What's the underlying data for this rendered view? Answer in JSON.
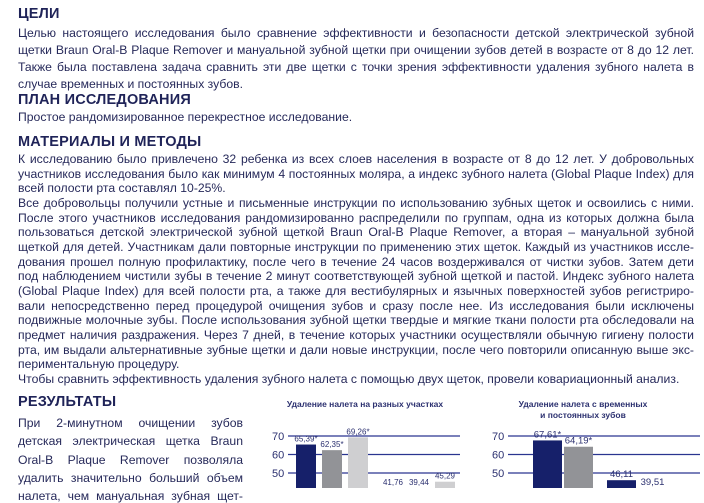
{
  "goals": {
    "heading": "ЦЕЛИ",
    "lines": [
      "Целью настоящего исследования было сравнение эффективности и безопасности детской электрической зубной",
      "щетки Braun Oral-B Plaque Remover и мануальной зубной щетки при очищении зубов детей в возрасте от 8 до 12 лет.",
      "Также была поставлена задача сравнить эти две щетки с точки зрения эффективности удаления зубного налета в",
      "случае временных и постоянных зубов."
    ]
  },
  "plan": {
    "heading": "ПЛАН ИССЛЕДОВАНИЯ",
    "lines": [
      "Простое рандомизированное перекрестное исследование."
    ]
  },
  "methods": {
    "heading": "МАТЕРИАЛЫ И МЕТОДЫ",
    "lines": [
      "К исследованию было привлечено 32 ребенка из всех слоев населения в возрасте от 8 до 12 лет. У добровольных",
      "участников исследования было как минимум 4 постоянных моляра, а индекс зубного налета (Global Plaque Index) для",
      "всей полости рта составлял 10-25%.",
      "Все добровольцы получили устные и письменные инструкции по использованию зубных щеток и освоились с ними.",
      "После этого участников исследования рандомизированно распределили по группам, одна из которых должна была",
      "пользоваться детской электрической зубной щеткой Braun Oral-B Plaque Remover, а вторая – мануальной зубной",
      "щеткой для детей. Участникам дали повторные инструкции по применению этих щеток. Каждый из участников иссле-",
      "дования прошел полную профилактику, после чего в течение 24 часов воздерживался от чистки зубов. Затем дети",
      "под наблюдением чистили зубы в течение 2 минут соответствующей зубной щеткой и пастой. Индекс зубного налета",
      "(Global Plaque Index) для всей полости рта, а также для вестибулярных и язычных поверхностей зубов регистриро-",
      "вали непосредственно перед процедурой очищения зубов и сразу после нее. Из исследования были исключены",
      "подвижные молочные зубы. После использования зубной щетки твердые и мягкие ткани полости рта обследовали на",
      "предмет наличия раздражения. Через 7 дней, в течение которых участники осуществляли обычную гигиену полости",
      "рта, им выдали альтернативные зубные щетки и дали новые инструкции, после чего повторили описанную выше экс-",
      "периментальную процедуру.",
      "Чтобы сравнить эффективность удаления зубного налета с помощью двух щеток, провели ковариационный анализ."
    ]
  },
  "results": {
    "heading": "РЕЗУЛЬТАТЫ",
    "lines": [
      "При 2-минутном очищении зубов",
      "детская электрическая щетка Braun",
      "Oral-B Plaque Remover позволяла",
      "удалить значительно больший объем",
      "налета, чем мануальная зубная щет-"
    ]
  },
  "colors": {
    "navy": "#16206a",
    "gray": "#929397",
    "light": "#cfcfd1",
    "grid": "#2a3590"
  },
  "chart_data": [
    {
      "type": "bar",
      "title": "Удаление налета на разных участках",
      "yticks": [
        50,
        60,
        70
      ],
      "ylim": [
        0,
        70
      ],
      "groups": [
        {
          "values": [
            65.39,
            62.35,
            69.26
          ],
          "labels": [
            "65,39*",
            "62,35*",
            "69,26*"
          ]
        },
        {
          "values": [
            41.76,
            39.44,
            45.29
          ],
          "labels": [
            "41,76",
            "39,44",
            "45,29"
          ]
        }
      ],
      "colors": [
        "navy",
        "gray",
        "light"
      ]
    },
    {
      "type": "bar",
      "title": [
        "Удаление налета с временных",
        "и постоянных зубов"
      ],
      "yticks": [
        50,
        60,
        70
      ],
      "ylim": [
        0,
        70
      ],
      "groups": [
        {
          "values": [
            67.61,
            64.19
          ],
          "labels": [
            "67,61*",
            "64,19*"
          ]
        },
        {
          "values": [
            46.11,
            39.51
          ],
          "labels": [
            "46,11",
            "39,51"
          ]
        }
      ],
      "colors": [
        "navy",
        "gray"
      ]
    }
  ]
}
